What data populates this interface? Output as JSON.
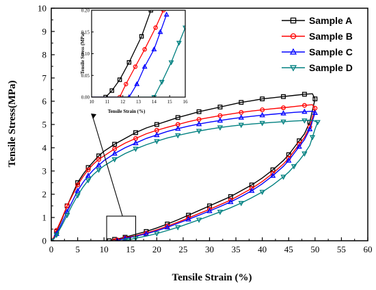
{
  "chart_data": [
    {
      "type": "line",
      "title": "",
      "xlabel": "Tensile Strain (%)",
      "ylabel": "Tensile Stress(MPa)",
      "xlim": [
        0,
        60
      ],
      "ylim": [
        0,
        10
      ],
      "xticks": [
        "0",
        "5",
        "10",
        "15",
        "20",
        "25",
        "30",
        "35",
        "40",
        "45",
        "50",
        "55",
        "60"
      ],
      "yticks": [
        "0",
        "1",
        "2",
        "3",
        "4",
        "5",
        "6",
        "7",
        "8",
        "9",
        "10"
      ],
      "legend_position": "top-right",
      "grid": false,
      "series": [
        {
          "name": "Sample A",
          "color": "#000000",
          "marker": "square",
          "x": [
            0,
            0.5,
            1,
            2,
            3,
            4,
            5,
            6,
            7,
            8,
            9,
            10,
            12,
            14,
            16,
            18,
            20,
            22,
            24,
            26,
            28,
            30,
            32,
            34,
            36,
            38,
            40,
            42,
            44,
            46,
            48,
            49.5,
            50,
            49.5,
            49,
            48,
            47,
            46,
            45,
            44,
            42,
            40,
            38,
            36,
            34,
            32,
            30,
            28,
            26,
            24,
            22,
            20,
            18,
            16,
            14,
            13,
            12,
            11.5,
            11
          ],
          "y": [
            0,
            0.15,
            0.4,
            0.9,
            1.5,
            2.0,
            2.5,
            2.85,
            3.15,
            3.4,
            3.65,
            3.85,
            4.15,
            4.4,
            4.65,
            4.85,
            5.0,
            5.15,
            5.3,
            5.42,
            5.55,
            5.65,
            5.75,
            5.85,
            5.95,
            6.02,
            6.1,
            6.15,
            6.2,
            6.25,
            6.3,
            6.32,
            6.1,
            5.6,
            5.1,
            4.6,
            4.3,
            4.0,
            3.7,
            3.45,
            3.05,
            2.7,
            2.4,
            2.15,
            1.9,
            1.7,
            1.5,
            1.3,
            1.1,
            0.9,
            0.72,
            0.55,
            0.4,
            0.28,
            0.15,
            0.1,
            0.06,
            0.03,
            0
          ]
        },
        {
          "name": "Sample B",
          "color": "#ff0000",
          "marker": "circle",
          "x": [
            0,
            0.5,
            1,
            2,
            3,
            4,
            5,
            6,
            7,
            8,
            9,
            10,
            12,
            14,
            16,
            18,
            20,
            22,
            24,
            26,
            28,
            30,
            32,
            34,
            36,
            38,
            40,
            42,
            44,
            46,
            48,
            49.5,
            50,
            49.5,
            49,
            48,
            47,
            46,
            45,
            44,
            42,
            40,
            38,
            36,
            34,
            32,
            30,
            28,
            26,
            24,
            22,
            20,
            18,
            16,
            14,
            13,
            12.5,
            12
          ],
          "y": [
            0,
            0.15,
            0.45,
            0.95,
            1.5,
            1.95,
            2.4,
            2.75,
            3.05,
            3.3,
            3.5,
            3.65,
            3.95,
            4.2,
            4.4,
            4.6,
            4.75,
            4.88,
            5.0,
            5.12,
            5.22,
            5.3,
            5.38,
            5.45,
            5.52,
            5.58,
            5.63,
            5.68,
            5.72,
            5.77,
            5.82,
            5.85,
            5.7,
            5.3,
            4.9,
            4.45,
            4.15,
            3.85,
            3.55,
            3.3,
            2.9,
            2.55,
            2.25,
            2.0,
            1.75,
            1.55,
            1.35,
            1.17,
            0.98,
            0.8,
            0.63,
            0.47,
            0.33,
            0.22,
            0.12,
            0.07,
            0.04,
            0
          ]
        },
        {
          "name": "Sample C",
          "color": "#0000ff",
          "marker": "triangle-up",
          "x": [
            0,
            0.5,
            1,
            2,
            3,
            4,
            5,
            6,
            7,
            8,
            9,
            10,
            12,
            14,
            16,
            18,
            20,
            22,
            24,
            26,
            28,
            30,
            32,
            34,
            36,
            38,
            40,
            42,
            44,
            46,
            48,
            49.5,
            50,
            49.5,
            49,
            48,
            47,
            46,
            45,
            44,
            42,
            40,
            38,
            36,
            34,
            32,
            30,
            28,
            26,
            24,
            22,
            20,
            18,
            16,
            14,
            13,
            12.5
          ],
          "y": [
            0,
            0.1,
            0.3,
            0.75,
            1.25,
            1.7,
            2.15,
            2.5,
            2.8,
            3.05,
            3.25,
            3.45,
            3.75,
            4.0,
            4.2,
            4.4,
            4.55,
            4.7,
            4.82,
            4.93,
            5.02,
            5.1,
            5.17,
            5.24,
            5.3,
            5.35,
            5.4,
            5.44,
            5.48,
            5.52,
            5.55,
            5.57,
            5.5,
            5.15,
            4.8,
            4.35,
            4.05,
            3.75,
            3.45,
            3.2,
            2.8,
            2.45,
            2.15,
            1.9,
            1.67,
            1.47,
            1.28,
            1.1,
            0.92,
            0.75,
            0.58,
            0.43,
            0.3,
            0.19,
            0.1,
            0.04,
            0
          ]
        },
        {
          "name": "Sample D",
          "color": "#008080",
          "marker": "triangle-down",
          "x": [
            0,
            0.5,
            1,
            2,
            3,
            4,
            5,
            6,
            7,
            8,
            9,
            10,
            12,
            14,
            16,
            18,
            20,
            22,
            24,
            26,
            28,
            30,
            32,
            34,
            36,
            38,
            40,
            42,
            44,
            46,
            48,
            49.5,
            50.5,
            50,
            49.5,
            49,
            48,
            47,
            46,
            45,
            44,
            42,
            40,
            38,
            36,
            34,
            32,
            30,
            28,
            26,
            24,
            22,
            20,
            18,
            16,
            15,
            14.5,
            14
          ],
          "y": [
            0,
            0.08,
            0.25,
            0.65,
            1.1,
            1.55,
            1.95,
            2.3,
            2.6,
            2.85,
            3.05,
            3.22,
            3.5,
            3.75,
            3.95,
            4.13,
            4.28,
            4.42,
            4.53,
            4.63,
            4.72,
            4.8,
            4.87,
            4.93,
            4.98,
            5.02,
            5.06,
            5.09,
            5.12,
            5.15,
            5.17,
            5.18,
            5.1,
            4.8,
            4.45,
            4.1,
            3.75,
            3.45,
            3.2,
            2.95,
            2.75,
            2.4,
            2.1,
            1.85,
            1.62,
            1.42,
            1.24,
            1.07,
            0.9,
            0.74,
            0.58,
            0.44,
            0.31,
            0.2,
            0.11,
            0.06,
            0.03,
            0
          ]
        }
      ]
    },
    {
      "type": "line",
      "title": "",
      "xlabel": "Tensile Strain (%)",
      "ylabel": "Tensile Stress (MPa)",
      "xlim": [
        10,
        16
      ],
      "ylim": [
        0,
        0.2
      ],
      "xticks": [
        "10",
        "11",
        "12",
        "13",
        "14",
        "15",
        "16"
      ],
      "yticks": [
        "0.00",
        "0.05",
        "0.10",
        "0.15",
        "0.20"
      ],
      "series": [
        {
          "name": "Sample A",
          "color": "#000000",
          "marker": "square",
          "x": [
            10.7,
            10.9,
            11.3,
            11.8,
            12.4,
            13.2,
            13.8
          ],
          "y": [
            0,
            0.0,
            0.015,
            0.04,
            0.08,
            0.14,
            0.2
          ]
        },
        {
          "name": "Sample B",
          "color": "#ff0000",
          "marker": "circle",
          "x": [
            11.5,
            11.8,
            12.2,
            12.8,
            13.4,
            14.1,
            14.6
          ],
          "y": [
            0,
            0.0,
            0.03,
            0.07,
            0.11,
            0.16,
            0.2
          ]
        },
        {
          "name": "Sample C",
          "color": "#0000ff",
          "marker": "triangle-up",
          "x": [
            12.2,
            12.4,
            12.9,
            13.4,
            14.0,
            14.4,
            14.8
          ],
          "y": [
            0,
            0.0,
            0.03,
            0.07,
            0.11,
            0.15,
            0.19
          ]
        },
        {
          "name": "Sample D",
          "color": "#008080",
          "marker": "triangle-down",
          "x": [
            13.9,
            14.0,
            14.5,
            15.1,
            15.6,
            16.0
          ],
          "y": [
            0,
            0.0,
            0.035,
            0.08,
            0.125,
            0.16
          ]
        }
      ]
    }
  ]
}
